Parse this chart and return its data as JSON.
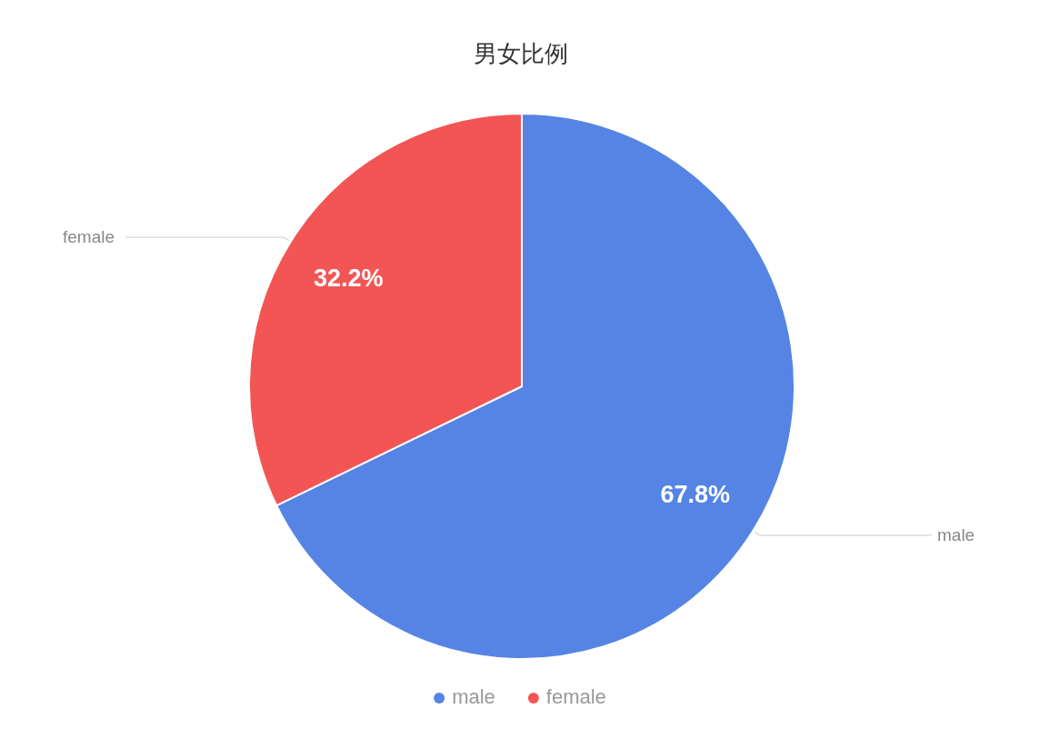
{
  "chart_data": {
    "type": "pie",
    "title": "男女比例",
    "categories": [
      "male",
      "female"
    ],
    "values": [
      67.8,
      32.2
    ],
    "colors": [
      "#5584e4",
      "#f35555"
    ],
    "value_labels": [
      "67.8%",
      "32.2%"
    ],
    "legend": "bottom"
  }
}
